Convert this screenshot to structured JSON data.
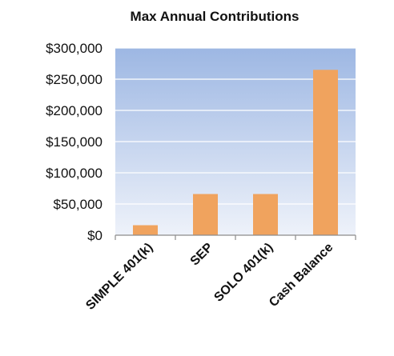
{
  "chart_data": {
    "type": "bar",
    "title": "Max Annual Contributions",
    "xlabel": "",
    "ylabel": "",
    "categories": [
      "SIMPLE 401(k)",
      "SEP",
      "SOLO 401(k)",
      "Cash Balance"
    ],
    "values": [
      16000,
      66000,
      66000,
      265000
    ],
    "ylim": [
      0,
      300000
    ],
    "yticks": [
      0,
      50000,
      100000,
      150000,
      200000,
      250000,
      300000
    ],
    "ytick_labels": [
      "$0",
      "$50,000",
      "$100,000",
      "$150,000",
      "$200,000",
      "$250,000",
      "$300,000"
    ],
    "grid": true,
    "legend": "none",
    "colors": {
      "bar": "#f0a35e",
      "plot_bg_top": "#9db7e3",
      "plot_bg_bottom": "#eef2fa",
      "grid": "#ffffff",
      "axis": "#8c8c8c"
    }
  }
}
